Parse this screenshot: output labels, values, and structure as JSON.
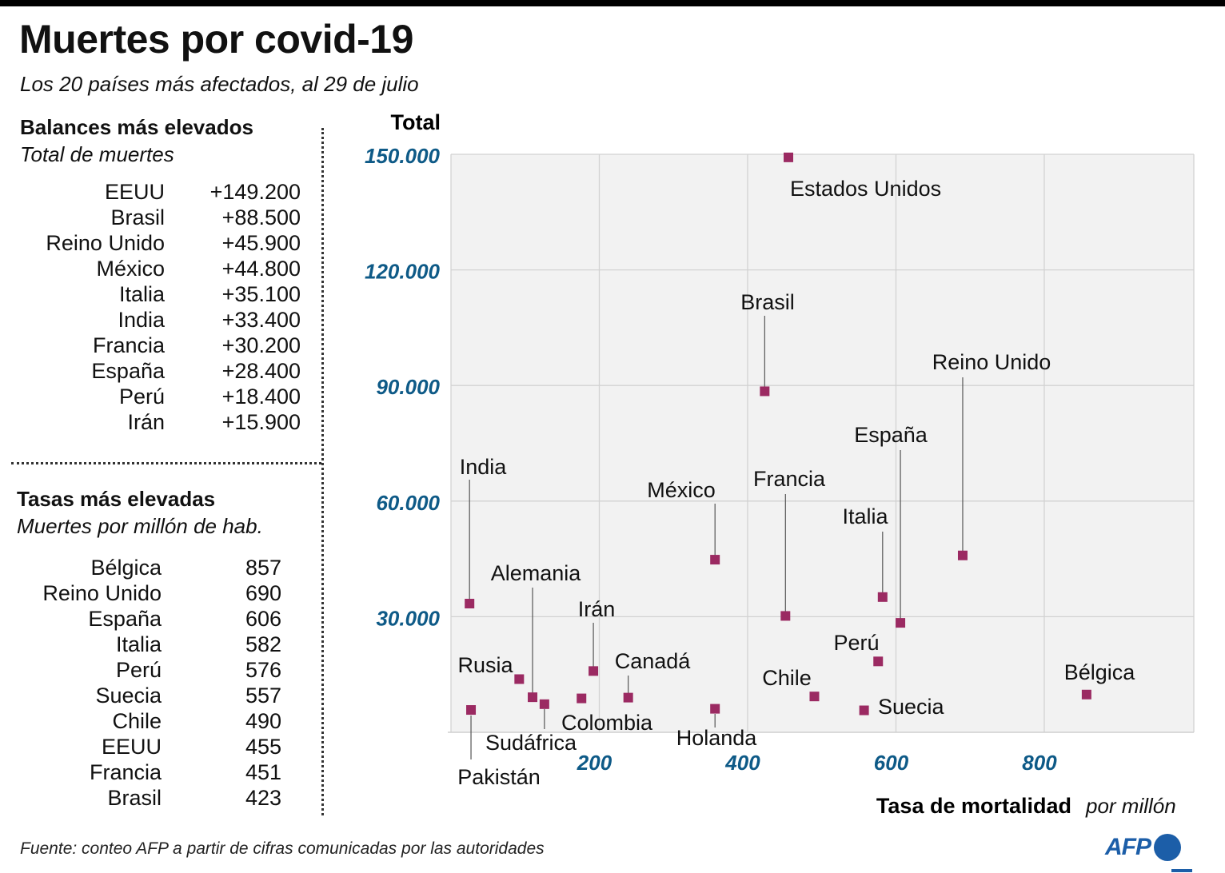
{
  "header": {
    "title": "Muertes por covid-19",
    "subtitle": "Los 20 países más afectados, al 29 de julio"
  },
  "totals_table": {
    "heading": "Balances más elevados",
    "subheading": "Total de muertes",
    "rows": [
      {
        "country": "EEUU",
        "value": "+149.200"
      },
      {
        "country": "Brasil",
        "value": "+88.500"
      },
      {
        "country": "Reino Unido",
        "value": "+45.900"
      },
      {
        "country": "México",
        "value": "+44.800"
      },
      {
        "country": "Italia",
        "value": "+35.100"
      },
      {
        "country": "India",
        "value": "+33.400"
      },
      {
        "country": "Francia",
        "value": "+30.200"
      },
      {
        "country": "España",
        "value": "+28.400"
      },
      {
        "country": "Perú",
        "value": "+18.400"
      },
      {
        "country": "Irán",
        "value": "+15.900"
      }
    ]
  },
  "rates_table": {
    "heading": "Tasas más elevadas",
    "subheading": "Muertes por millón  de hab.",
    "rows": [
      {
        "country": "Bélgica",
        "value": "857"
      },
      {
        "country": "Reino Unido",
        "value": "690"
      },
      {
        "country": "España",
        "value": "606"
      },
      {
        "country": "Italia",
        "value": "582"
      },
      {
        "country": "Perú",
        "value": "576"
      },
      {
        "country": "Suecia",
        "value": "557"
      },
      {
        "country": "Chile",
        "value": "490"
      },
      {
        "country": "EEUU",
        "value": "455"
      },
      {
        "country": "Francia",
        "value": "451"
      },
      {
        "country": "Brasil",
        "value": "423"
      }
    ]
  },
  "chart_data": {
    "type": "scatter",
    "title": "Muertes por covid-19",
    "ylabel": "Total",
    "xlabel": "Tasa de mortalidad",
    "xlabel_unit": "por millón",
    "xlim": [
      0,
      1000
    ],
    "ylim": [
      0,
      150000
    ],
    "x_ticks": [
      200,
      400,
      600,
      800
    ],
    "x_tick_labels": [
      "200",
      "400",
      "600",
      "800"
    ],
    "y_ticks": [
      30000,
      60000,
      90000,
      120000,
      150000
    ],
    "y_tick_labels": [
      "30.000",
      "60.000",
      "90.000",
      "120.000",
      "150.000"
    ],
    "grid": true,
    "marker_color": "#9b2a62",
    "points": [
      {
        "label": "Estados Unidos",
        "x": 455,
        "y": 149200
      },
      {
        "label": "Brasil",
        "x": 423,
        "y": 88500
      },
      {
        "label": "Reino Unido",
        "x": 690,
        "y": 45900
      },
      {
        "label": "México",
        "x": 356,
        "y": 44800
      },
      {
        "label": "Italia",
        "x": 582,
        "y": 35100
      },
      {
        "label": "India",
        "x": 25,
        "y": 33400
      },
      {
        "label": "Francia",
        "x": 451,
        "y": 30200
      },
      {
        "label": "España",
        "x": 606,
        "y": 28400
      },
      {
        "label": "Perú",
        "x": 576,
        "y": 18400
      },
      {
        "label": "Irán",
        "x": 192,
        "y": 15900
      },
      {
        "label": "Rusia",
        "x": 92,
        "y": 13800
      },
      {
        "label": "Bélgica",
        "x": 857,
        "y": 9800
      },
      {
        "label": "Chile",
        "x": 490,
        "y": 9300
      },
      {
        "label": "Canadá",
        "x": 239,
        "y": 9000
      },
      {
        "label": "Alemania",
        "x": 110,
        "y": 9100
      },
      {
        "label": "Colombia",
        "x": 176,
        "y": 8800
      },
      {
        "label": "Sudáfrica",
        "x": 126,
        "y": 7300
      },
      {
        "label": "Holanda",
        "x": 356,
        "y": 6100
      },
      {
        "label": "Suecia",
        "x": 557,
        "y": 5700
      },
      {
        "label": "Pakistán",
        "x": 27,
        "y": 5800
      }
    ]
  },
  "footer": {
    "source": "Fuente: conteo AFP a partir de cifras comunicadas por las autoridades",
    "logo_text": "AFP"
  },
  "colors": {
    "accent_blue": "#0e5a87",
    "marker": "#9b2a62",
    "plot_bg": "#f2f2f2",
    "logo_blue": "#1c5ea8"
  }
}
